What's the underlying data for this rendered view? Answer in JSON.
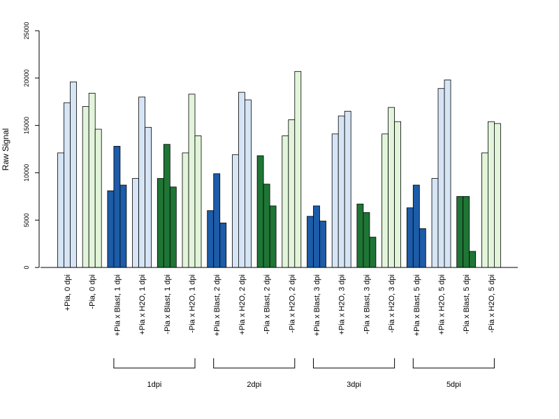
{
  "chart_data": {
    "type": "bar",
    "title": "",
    "xlabel": "",
    "ylabel": "Raw Signal",
    "ylim": [
      0,
      25000
    ],
    "yticks": [
      0,
      5000,
      10000,
      15000,
      20000,
      25000
    ],
    "grid": false,
    "legend": "none",
    "colors": {
      "pia_h2o": "#d6e5f5",
      "nopia_h2o": "#e2f5da",
      "pia_blast": "#1c5ca8",
      "nopia_blast": "#1f7535"
    },
    "categories": [
      "+Pia, 0 dpi",
      "-Pia, 0 dpi",
      "+Pia x Blast, 1 dpi",
      "+Pia x H2O, 1 dpi",
      "-Pia x Blast, 1 dpi",
      "-Pia x H2O, 1 dpi",
      "+Pia x Blast, 2 dpi",
      "+Pia x H2O, 2 dpi",
      "-Pia x Blast, 2 dpi",
      "-Pia x H2O, 2 dpi",
      "+Pia x Blast, 3 dpi",
      "+Pia x H2O, 3 dpi",
      "-Pia x Blast, 3 dpi",
      "-Pia x H2O, 3 dpi",
      "+Pia x Blast, 5 dpi",
      "+Pia x H2O, 5 dpi",
      "-Pia x Blast, 5 dpi",
      "-Pia x H2O, 5 dpi"
    ],
    "category_color": [
      "pia_h2o",
      "nopia_h2o",
      "pia_blast",
      "pia_h2o",
      "nopia_blast",
      "nopia_h2o",
      "pia_blast",
      "pia_h2o",
      "nopia_blast",
      "nopia_h2o",
      "pia_blast",
      "pia_h2o",
      "nopia_blast",
      "nopia_h2o",
      "pia_blast",
      "pia_h2o",
      "nopia_blast",
      "nopia_h2o"
    ],
    "values": [
      [
        12100,
        17400,
        19600
      ],
      [
        17000,
        18400,
        14600
      ],
      [
        8100,
        12800,
        8700
      ],
      [
        9400,
        18000,
        14800
      ],
      [
        9400,
        13000,
        8500
      ],
      [
        12100,
        18300,
        13900
      ],
      [
        6000,
        9900,
        4700
      ],
      [
        11900,
        18500,
        17700
      ],
      [
        11800,
        8800,
        6500
      ],
      [
        13900,
        15600,
        20700
      ],
      [
        5400,
        6500,
        4900
      ],
      [
        14100,
        16000,
        16500
      ],
      [
        6700,
        5800,
        3200
      ],
      [
        14100,
        16900,
        15400
      ],
      [
        6300,
        8700,
        4100
      ],
      [
        9400,
        18900,
        19800
      ],
      [
        7500,
        7500,
        1700
      ],
      [
        12100,
        15400,
        15200
      ]
    ],
    "groups": [
      {
        "label": "1dpi",
        "first": 2,
        "last": 5
      },
      {
        "label": "2dpi",
        "first": 6,
        "last": 9
      },
      {
        "label": "3dpi",
        "first": 10,
        "last": 13
      },
      {
        "label": "5dpi",
        "first": 14,
        "last": 17
      }
    ]
  }
}
